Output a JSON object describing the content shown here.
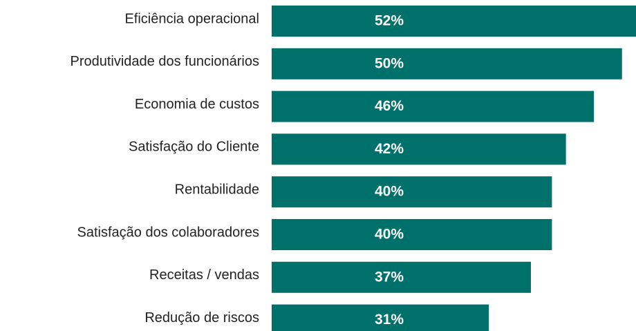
{
  "chart_data": {
    "type": "bar",
    "orientation": "horizontal",
    "categories": [
      "Eficiência operacional",
      "Produtividade dos funcionários",
      "Economia de custos",
      "Satisfação do Cliente",
      "Rentabilidade",
      "Satisfação dos colaboradores",
      "Receitas / vendas",
      "Redução de riscos"
    ],
    "values": [
      52,
      50,
      46,
      42,
      40,
      40,
      37,
      31
    ],
    "value_labels": [
      "52%",
      "50%",
      "46%",
      "42%",
      "40%",
      "40%",
      "37%",
      "31%"
    ],
    "color": "#00706a"
  }
}
